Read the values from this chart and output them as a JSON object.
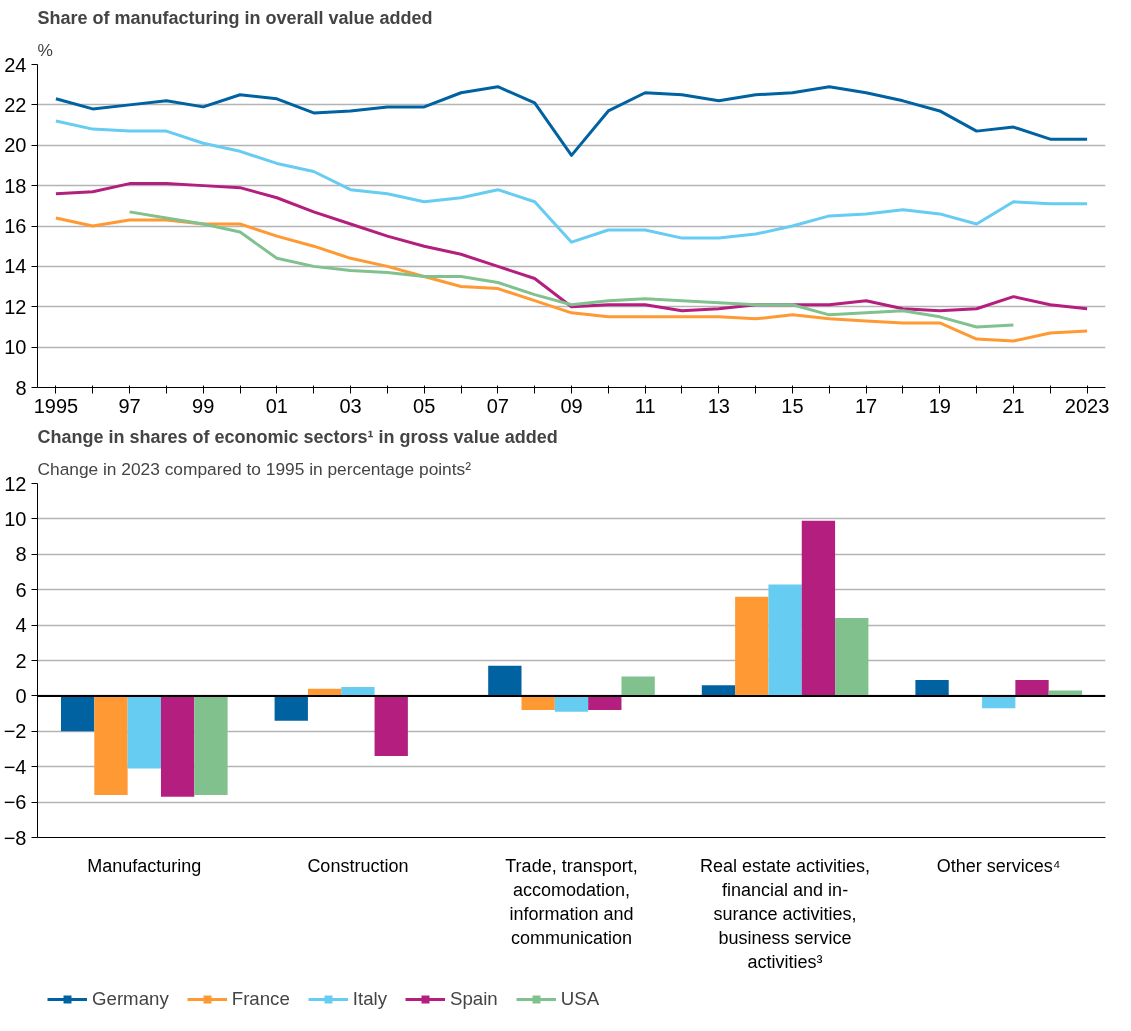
{
  "chart_data": [
    {
      "type": "line",
      "title": "Share of manufacturing in overall value added",
      "ylabel": "%",
      "x": [
        1995,
        1996,
        1997,
        1998,
        1999,
        2000,
        2001,
        2002,
        2003,
        2004,
        2005,
        2006,
        2007,
        2008,
        2009,
        2010,
        2011,
        2012,
        2013,
        2014,
        2015,
        2016,
        2017,
        2018,
        2019,
        2020,
        2021,
        2022,
        2023
      ],
      "series": [
        {
          "name": "Germany",
          "color": "#0062a1",
          "values": [
            22.3,
            21.8,
            22.0,
            22.2,
            21.9,
            22.5,
            22.3,
            21.6,
            21.7,
            21.9,
            21.9,
            22.6,
            22.9,
            22.1,
            19.5,
            21.7,
            22.6,
            22.5,
            22.2,
            22.5,
            22.6,
            22.9,
            22.6,
            22.2,
            21.7,
            20.7,
            20.9,
            20.3,
            20.3
          ]
        },
        {
          "name": "France",
          "color": "#ff9933",
          "values": [
            16.4,
            16.0,
            16.3,
            16.3,
            16.1,
            16.1,
            15.5,
            15.0,
            14.4,
            14.0,
            13.5,
            13.0,
            12.9,
            12.3,
            11.7,
            11.5,
            11.5,
            11.5,
            11.5,
            11.4,
            11.6,
            11.4,
            11.3,
            11.2,
            11.2,
            10.4,
            10.3,
            10.7,
            10.8
          ]
        },
        {
          "name": "Italy",
          "color": "#66ccf2",
          "values": [
            21.2,
            20.8,
            20.7,
            20.7,
            20.1,
            19.7,
            19.1,
            18.7,
            17.8,
            17.6,
            17.2,
            17.4,
            17.8,
            17.2,
            15.2,
            15.8,
            15.8,
            15.4,
            15.4,
            15.6,
            16.0,
            16.5,
            16.6,
            16.8,
            16.6,
            16.1,
            17.2,
            17.1,
            17.1
          ]
        },
        {
          "name": "Spain",
          "color": "#b41f7f",
          "values": [
            17.6,
            17.7,
            18.1,
            18.1,
            18.0,
            17.9,
            17.4,
            16.7,
            16.1,
            15.5,
            15.0,
            14.6,
            14.0,
            13.4,
            12.0,
            12.1,
            12.1,
            11.8,
            11.9,
            12.1,
            12.1,
            12.1,
            12.3,
            11.9,
            11.8,
            11.9,
            12.5,
            12.1,
            11.9
          ]
        },
        {
          "name": "USA",
          "color": "#80c18e",
          "values": [
            null,
            null,
            16.7,
            16.4,
            16.1,
            15.7,
            14.4,
            14.0,
            13.8,
            13.7,
            13.5,
            13.5,
            13.2,
            12.6,
            12.1,
            12.3,
            12.4,
            12.3,
            12.2,
            12.1,
            12.1,
            11.6,
            11.7,
            11.8,
            11.5,
            11.0,
            11.1,
            null,
            null
          ]
        }
      ],
      "xlim": [
        1994.5,
        2023.5
      ],
      "xticks": [
        {
          "value": 1995,
          "label": "1995"
        },
        {
          "value": 1996,
          "label": null
        },
        {
          "value": 1997,
          "label": "97"
        },
        {
          "value": 1998,
          "label": null
        },
        {
          "value": 1999,
          "label": "99"
        },
        {
          "value": 2000,
          "label": null
        },
        {
          "value": 2001,
          "label": "01"
        },
        {
          "value": 2002,
          "label": null
        },
        {
          "value": 2003,
          "label": "03"
        },
        {
          "value": 2004,
          "label": null
        },
        {
          "value": 2005,
          "label": "05"
        },
        {
          "value": 2006,
          "label": null
        },
        {
          "value": 2007,
          "label": "07"
        },
        {
          "value": 2008,
          "label": null
        },
        {
          "value": 2009,
          "label": "09"
        },
        {
          "value": 2010,
          "label": null
        },
        {
          "value": 2011,
          "label": "11"
        },
        {
          "value": 2012,
          "label": null
        },
        {
          "value": 2013,
          "label": "13"
        },
        {
          "value": 2014,
          "label": null
        },
        {
          "value": 2015,
          "label": "15"
        },
        {
          "value": 2016,
          "label": null
        },
        {
          "value": 2017,
          "label": "17"
        },
        {
          "value": 2018,
          "label": null
        },
        {
          "value": 2019,
          "label": "19"
        },
        {
          "value": 2020,
          "label": null
        },
        {
          "value": 2021,
          "label": "21"
        },
        {
          "value": 2022,
          "label": null
        },
        {
          "value": 2023,
          "label": "2023"
        }
      ],
      "ylim": [
        8,
        24
      ],
      "yticks": [
        8,
        10,
        12,
        14,
        16,
        18,
        20,
        22,
        24
      ],
      "grid": "y",
      "legend": "bottom",
      "marker": "none",
      "line_style": "solid"
    },
    {
      "type": "bar",
      "title": "Change in shares of economic sectors¹ in gross value added",
      "ylabel": "Change in 2023 compared to 1995 in percentage points²",
      "categories": [
        "Manufacturing",
        "Construction",
        "Trade, transport,\naccomodation,\ninformation and\ncommunication",
        "Real estate activities,\nfinancial and in-\nsurance activities,\nbusiness service\nactivities³",
        "Other services⁴"
      ],
      "series": [
        {
          "name": "Germany",
          "color": "#0062a1",
          "values": [
            -2.0,
            -1.4,
            1.7,
            0.6,
            0.9
          ]
        },
        {
          "name": "France",
          "color": "#ff9933",
          "values": [
            -5.6,
            0.4,
            -0.8,
            5.6,
            0.0
          ]
        },
        {
          "name": "Italy",
          "color": "#66ccf2",
          "values": [
            -4.1,
            0.5,
            -0.9,
            6.3,
            -0.7
          ]
        },
        {
          "name": "Spain",
          "color": "#b41f7f",
          "values": [
            -5.7,
            -3.4,
            -0.8,
            9.9,
            0.9
          ]
        },
        {
          "name": "USA",
          "color": "#80c18e",
          "values": [
            -5.6,
            0.0,
            1.1,
            4.4,
            0.3
          ]
        }
      ],
      "ylim": [
        -8,
        12
      ],
      "yticks": [
        -8,
        -6,
        -4,
        -2,
        0,
        2,
        4,
        6,
        8,
        10,
        12
      ],
      "grid": "y",
      "legend": "bottom"
    }
  ]
}
